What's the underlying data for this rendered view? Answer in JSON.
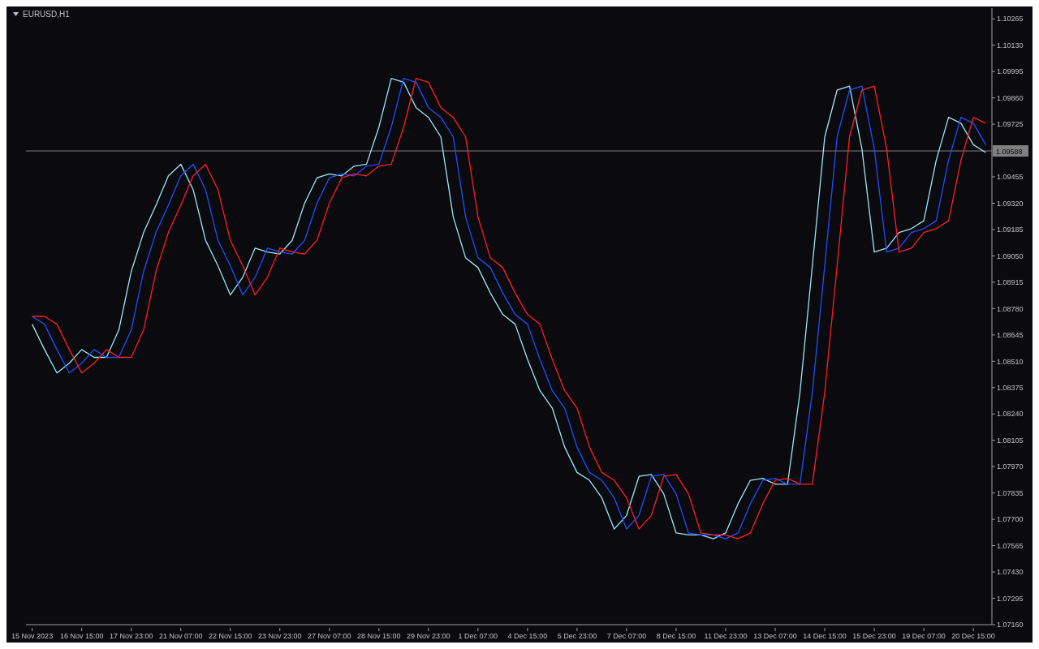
{
  "chart_data": {
    "type": "line",
    "title": "EURUSD,H1",
    "categories": [
      "15 Nov 2023",
      null,
      null,
      null,
      "16 Nov 15:00",
      null,
      null,
      null,
      "17 Nov 23:00",
      null,
      null,
      null,
      "21 Nov 07:00",
      null,
      null,
      null,
      "22 Nov 15:00",
      null,
      null,
      null,
      "23 Nov 23:00",
      null,
      null,
      null,
      "27 Nov 07:00",
      null,
      null,
      null,
      "28 Nov 15:00",
      null,
      null,
      null,
      "29 Nov 23:00",
      null,
      null,
      null,
      "1 Dec 07:00",
      null,
      null,
      null,
      "4 Dec 15:00",
      null,
      null,
      null,
      "5 Dec 23:00",
      null,
      null,
      null,
      "7 Dec 07:00",
      null,
      null,
      null,
      "8 Dec 15:00",
      null,
      null,
      null,
      "11 Dec 23:00",
      null,
      null,
      null,
      "13 Dec 07:00",
      null,
      null,
      null,
      "14 Dec 15:00",
      null,
      null,
      null,
      "15 Dec 23:00",
      null,
      null,
      null,
      "19 Dec 07:00",
      null,
      null,
      null,
      "20 Dec 15:00",
      null
    ],
    "series": [
      {
        "color": "#9ee8f7",
        "values": [
          1.087,
          1.0857,
          1.0845,
          1.085,
          1.0857,
          1.0853,
          1.0853,
          1.0867,
          1.0897,
          1.0917,
          1.0931,
          1.0946,
          1.0952,
          1.0939,
          1.0913,
          1.09,
          1.0885,
          1.0894,
          1.0909,
          1.0907,
          1.0906,
          1.0913,
          1.0932,
          1.0945,
          1.0947,
          1.0946,
          1.0951,
          1.0952,
          1.0971,
          1.0996,
          1.0994,
          1.0981,
          1.0976,
          1.0966,
          1.0925,
          1.0904,
          1.0899,
          1.0886,
          1.0875,
          1.087,
          1.0852,
          1.0836,
          1.0827,
          1.0807,
          1.0794,
          1.079,
          1.0781,
          1.0765,
          1.0772,
          1.0792,
          1.0793,
          1.0783,
          1.0763,
          1.0762,
          1.0762,
          1.076,
          1.0763,
          1.0778,
          1.079,
          1.0791,
          1.0788,
          1.0788,
          1.0835,
          1.09,
          1.0966,
          1.099,
          1.0992,
          1.096,
          1.0907,
          1.0909,
          1.0917,
          1.0919,
          1.0923,
          1.0954,
          1.0976,
          1.0973,
          1.0962,
          1.0958
        ]
      },
      {
        "color": "#1e50ff",
        "values": [
          1.0874,
          1.087,
          1.0857,
          1.0845,
          1.085,
          1.0857,
          1.0853,
          1.0853,
          1.0867,
          1.0897,
          1.0917,
          1.0931,
          1.0946,
          1.0952,
          1.0939,
          1.0913,
          1.09,
          1.0885,
          1.0894,
          1.0909,
          1.0907,
          1.0906,
          1.0913,
          1.0932,
          1.0945,
          1.0947,
          1.0946,
          1.0951,
          1.0952,
          1.0971,
          1.0996,
          1.0994,
          1.0981,
          1.0976,
          1.0966,
          1.0925,
          1.0904,
          1.0899,
          1.0886,
          1.0875,
          1.087,
          1.0852,
          1.0836,
          1.0827,
          1.0807,
          1.0794,
          1.079,
          1.0781,
          1.0765,
          1.0772,
          1.0792,
          1.0793,
          1.0783,
          1.0763,
          1.0762,
          1.0762,
          1.076,
          1.0763,
          1.0778,
          1.079,
          1.0791,
          1.0788,
          1.0788,
          1.0835,
          1.09,
          1.0966,
          1.099,
          1.0992,
          1.096,
          1.0907,
          1.0909,
          1.0917,
          1.0919,
          1.0923,
          1.0954,
          1.0976,
          1.0973,
          1.0962
        ]
      },
      {
        "color": "#ff2020",
        "values": [
          1.0874,
          1.0874,
          1.087,
          1.0857,
          1.0845,
          1.085,
          1.0857,
          1.0853,
          1.0853,
          1.0867,
          1.0897,
          1.0917,
          1.0931,
          1.0946,
          1.0952,
          1.0939,
          1.0913,
          1.09,
          1.0885,
          1.0894,
          1.0909,
          1.0907,
          1.0906,
          1.0913,
          1.0932,
          1.0945,
          1.0947,
          1.0946,
          1.0951,
          1.0952,
          1.0971,
          1.0996,
          1.0994,
          1.0981,
          1.0976,
          1.0966,
          1.0925,
          1.0904,
          1.0899,
          1.0886,
          1.0875,
          1.087,
          1.0852,
          1.0836,
          1.0827,
          1.0807,
          1.0794,
          1.079,
          1.0781,
          1.0765,
          1.0772,
          1.0792,
          1.0793,
          1.0783,
          1.0763,
          1.0762,
          1.0762,
          1.076,
          1.0763,
          1.0778,
          1.079,
          1.0791,
          1.0788,
          1.0788,
          1.0835,
          1.09,
          1.0966,
          1.099,
          1.0992,
          1.096,
          1.0907,
          1.0909,
          1.0917,
          1.0919,
          1.0923,
          1.0954,
          1.0976,
          1.0973
        ]
      }
    ],
    "ylim": [
      1.0716,
      1.1032
    ],
    "yticks": [
      {
        "value": 1.0716,
        "label": "1.07160"
      },
      {
        "value": 1.07295,
        "label": "1.07295"
      },
      {
        "value": 1.0743,
        "label": "1.07430"
      },
      {
        "value": 1.07565,
        "label": "1.07565"
      },
      {
        "value": 1.077,
        "label": "1.07700"
      },
      {
        "value": 1.07835,
        "label": "1.07835"
      },
      {
        "value": 1.0797,
        "label": "1.07970"
      },
      {
        "value": 1.08105,
        "label": "1.08105"
      },
      {
        "value": 1.0824,
        "label": "1.08240"
      },
      {
        "value": 1.08375,
        "label": "1.08375"
      },
      {
        "value": 1.0851,
        "label": "1.08510"
      },
      {
        "value": 1.08645,
        "label": "1.08645"
      },
      {
        "value": 1.0878,
        "label": "1.08780"
      },
      {
        "value": 1.08915,
        "label": "1.08915"
      },
      {
        "value": 1.0905,
        "label": "1.09050"
      },
      {
        "value": 1.09185,
        "label": "1.09185"
      },
      {
        "value": 1.0932,
        "label": "1.09320"
      },
      {
        "value": 1.09455,
        "label": "1.09455"
      },
      {
        "value": 1.09725,
        "label": "1.09725"
      },
      {
        "value": 1.0986,
        "label": "1.09860"
      },
      {
        "value": 1.09995,
        "label": "1.09995"
      },
      {
        "value": 1.1013,
        "label": "1.10130"
      },
      {
        "value": 1.10265,
        "label": "1.10265"
      }
    ],
    "ref_lines": [
      {
        "axis": "y",
        "value": 1.09588,
        "label": "1.09588",
        "color": "#808080"
      }
    ],
    "marker": "none",
    "line_style": "solid"
  }
}
